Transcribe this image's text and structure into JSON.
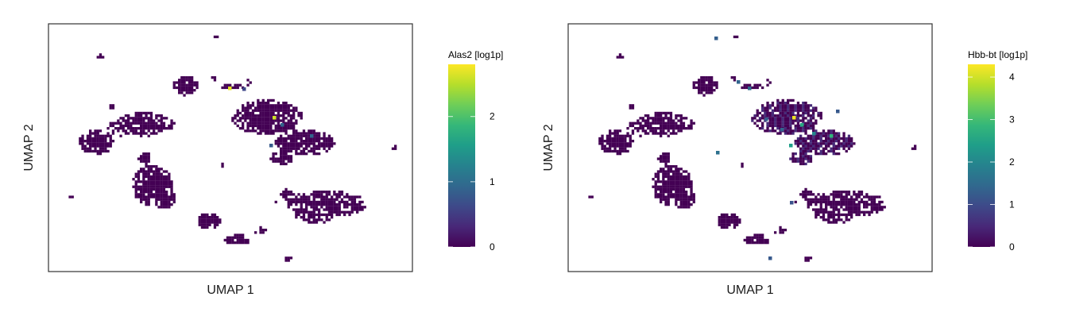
{
  "chart_data": [
    {
      "type": "scatter",
      "title": "",
      "xlabel": "UMAP 1",
      "ylabel": "UMAP 2",
      "colorbar": {
        "title": "Alas2 [log1p]",
        "range": [
          0,
          2.8
        ],
        "ticks": [
          "0",
          "1",
          "2"
        ],
        "tick_values": [
          0,
          1,
          2
        ],
        "colormap": [
          "#440154",
          "#482878",
          "#3e4989",
          "#31688e",
          "#26828e",
          "#1f9e89",
          "#35b779",
          "#6ece58",
          "#b5de2b",
          "#fde725"
        ]
      },
      "hotspots": [
        {
          "x": 289,
          "y": 111,
          "value": 2.7
        },
        {
          "x": 345,
          "y": 148,
          "value": 2.6
        },
        {
          "x": 355,
          "y": 157,
          "value": 0.9
        },
        {
          "x": 392,
          "y": 171,
          "value": 0.9
        },
        {
          "x": 341,
          "y": 183,
          "value": 0.8
        },
        {
          "x": 307,
          "y": 112,
          "value": 0.6
        }
      ]
    },
    {
      "type": "scatter",
      "title": "",
      "xlabel": "UMAP 1",
      "ylabel": "UMAP 2",
      "colorbar": {
        "title": "Hbb-bt [log1p]",
        "range": [
          0,
          4.3
        ],
        "ticks": [
          "0",
          "1",
          "2",
          "3",
          "4"
        ],
        "tick_values": [
          0,
          1,
          2,
          3,
          4
        ],
        "colormap": [
          "#440154",
          "#482878",
          "#3e4989",
          "#31688e",
          "#26828e",
          "#1f9e89",
          "#35b779",
          "#6ece58",
          "#b5de2b",
          "#fde725"
        ]
      },
      "hotspots": [
        {
          "x": 289,
          "y": 111,
          "value": 1.5
        },
        {
          "x": 345,
          "y": 148,
          "value": 4.2
        },
        {
          "x": 355,
          "y": 157,
          "value": 2.6
        },
        {
          "x": 370,
          "y": 168,
          "value": 2.0
        },
        {
          "x": 392,
          "y": 171,
          "value": 2.8
        },
        {
          "x": 341,
          "y": 183,
          "value": 2.4
        },
        {
          "x": 330,
          "y": 163,
          "value": 1.4
        },
        {
          "x": 310,
          "y": 150,
          "value": 1.3
        },
        {
          "x": 275,
          "y": 103,
          "value": 1.4
        },
        {
          "x": 249,
          "y": 192,
          "value": 1.6
        },
        {
          "x": 247,
          "y": 48,
          "value": 1.3
        },
        {
          "x": 315,
          "y": 325,
          "value": 1.2
        },
        {
          "x": 342,
          "y": 255,
          "value": 1.1
        },
        {
          "x": 400,
          "y": 140,
          "value": 1.2
        }
      ]
    }
  ]
}
